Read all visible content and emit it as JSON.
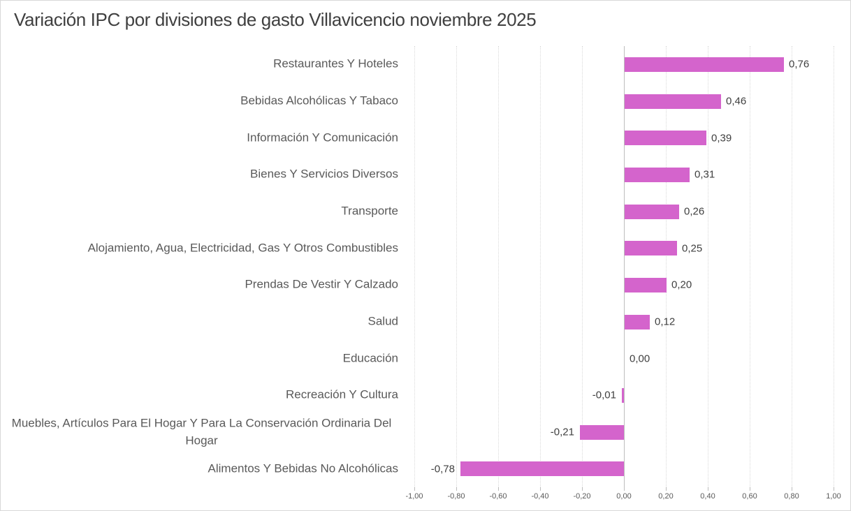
{
  "chart_data": {
    "type": "bar",
    "orientation": "horizontal",
    "title": "Variación IPC por divisiones de gasto Villavicencio noviembre 2025",
    "categories": [
      "Restaurantes Y Hoteles",
      "Bebidas Alcohólicas Y Tabaco",
      "Información Y Comunicación",
      "Bienes Y Servicios Diversos",
      "Transporte",
      "Alojamiento, Agua, Electricidad, Gas Y Otros Combustibles",
      "Prendas De Vestir Y Calzado",
      "Salud",
      "Educación",
      "Recreación Y Cultura",
      "Muebles, Artículos Para El Hogar Y Para La Conservación Ordinaria Del Hogar",
      "Alimentos Y Bebidas No Alcohólicas"
    ],
    "values": [
      0.76,
      0.46,
      0.39,
      0.31,
      0.26,
      0.25,
      0.2,
      0.12,
      0.0,
      -0.01,
      -0.21,
      -0.78
    ],
    "value_labels": [
      "0,76",
      "0,46",
      "0,39",
      "0,31",
      "0,26",
      "0,25",
      "0,20",
      "0,12",
      "0,00",
      "-0,01",
      "-0,21",
      "-0,78"
    ],
    "xlabel": "",
    "ylabel": "",
    "xlim": [
      -1.0,
      1.0
    ],
    "x_ticks": [
      -1.0,
      -0.8,
      -0.6,
      -0.4,
      -0.2,
      0.0,
      0.2,
      0.4,
      0.6,
      0.8,
      1.0
    ],
    "x_tick_labels": [
      "-1,00",
      "-0,80",
      "-0,60",
      "-0,40",
      "-0,20",
      "0,00",
      "0,20",
      "0,40",
      "0,60",
      "0,80",
      "1,00"
    ],
    "grid": true,
    "legend": "none",
    "decimal_separator": ","
  },
  "colors": {
    "bar_fill": "#d464cc",
    "title_text": "#404040",
    "category_text": "#595959",
    "value_text": "#404040",
    "tick_text": "#595959",
    "gridline": "#d9d9d9",
    "axis_line": "#bdbdbd",
    "border": "#d8d8d8",
    "background": "#ffffff"
  }
}
